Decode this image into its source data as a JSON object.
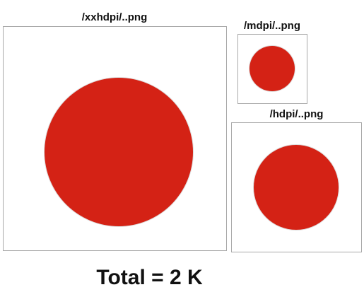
{
  "panels": {
    "xxhdpi": {
      "label": "/xxhdpi/..png"
    },
    "mdpi": {
      "label": "/mdpi/..png"
    },
    "hdpi": {
      "label": "/hdpi/..png"
    }
  },
  "total_label": "Total = 2 K",
  "colors": {
    "dot_fill": "#d42215",
    "frame_border": "#a9a9a9",
    "text": "#111111",
    "background": "#ffffff"
  }
}
